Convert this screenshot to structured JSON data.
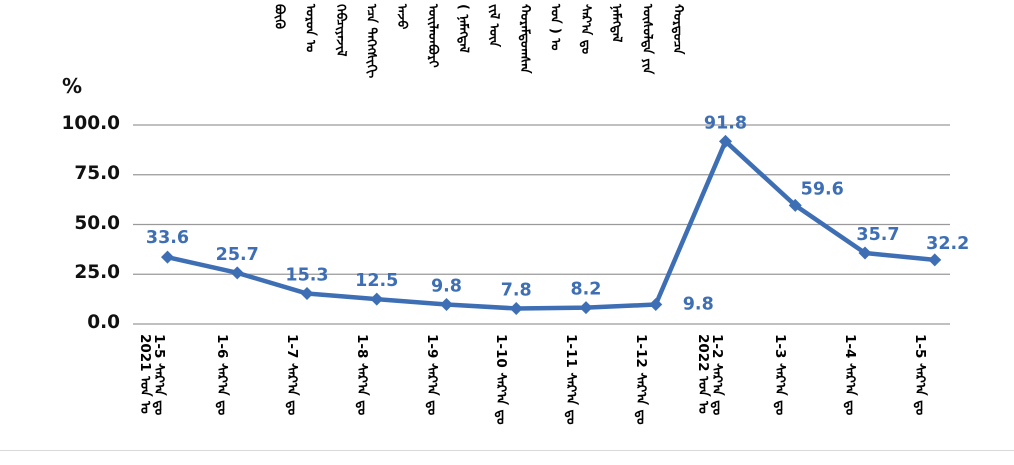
{
  "title": {
    "script": "mongolian-vertical",
    "words": [
      "ᠪᠦᠬᠦ",
      "ᠣᠷᠣᠨ ᠤ",
      "ᠬᠡᠪᠴᠢᠶᠡᠵᠢᠯ",
      "ᠡᠴᠡ ᠳᠡᠭᠡᠭᠰᠢᠬᠢ",
      "ᠠᠵᠤ",
      "ᠦᠢᠯᠡᠳᠪᠦᠷᠢ",
      "( ᠨᠡᠮᠡᠭᠳᠡᠯ",
      "ᠵᠢᠯ ᠦᠨ",
      "ᠬᠤᠷᠠᠮᠳᠤᠭᠰᠠᠨ",
      "ᠣᠨ ) ᠤ",
      "ᠰᠠᠷ᠎ᠠ ᠳᠤ",
      "ᠨᠡᠮᠡᠭᠳᠡᠯ",
      "ᠥᠰᠦᠯᠲᠡ ᠶᠢᠨ",
      "ᠬᠤᠷᠳᠤᠴᠠ"
    ]
  },
  "y_axis": {
    "unit_label": "%",
    "ticks": [
      {
        "value": 100,
        "label": "100.0"
      },
      {
        "value": 75,
        "label": "75.0"
      },
      {
        "value": 50,
        "label": "50.0"
      },
      {
        "value": 25,
        "label": "25.0"
      },
      {
        "value": 0,
        "label": "0.0"
      }
    ]
  },
  "chart_data": {
    "type": "line",
    "title": "Cumulative growth rate (%), traditional Mongolian script chart",
    "xlabel": "",
    "ylabel": "%",
    "ylim": [
      0,
      100
    ],
    "grid": true,
    "legend": false,
    "marker": "diamond",
    "line_color": "#3E6FB4",
    "label_color": "#3E6FB4",
    "grid_color": "#9a9a9a",
    "categories": [
      {
        "month": "1-5",
        "suffix": "ᠰᠠᠷ᠎ᠠ ᠳᠤ",
        "year": "2021 ᠣᠨ ᠤ"
      },
      {
        "month": "1-6",
        "suffix": "ᠰᠠᠷ᠎ᠠ ᠳᠤ",
        "year": null
      },
      {
        "month": "1-7",
        "suffix": "ᠰᠠᠷ᠎ᠠ ᠳᠤ",
        "year": null
      },
      {
        "month": "1-8",
        "suffix": "ᠰᠠᠷ᠎ᠠ ᠳᠤ",
        "year": null
      },
      {
        "month": "1-9",
        "suffix": "ᠰᠠᠷ᠎ᠠ ᠳᠤ",
        "year": null
      },
      {
        "month": "1-10",
        "suffix": "ᠰᠠᠷ᠎ᠠ ᠳᠤ",
        "year": null
      },
      {
        "month": "1-11",
        "suffix": "ᠰᠠᠷ᠎ᠠ ᠳᠤ",
        "year": null
      },
      {
        "month": "1-12",
        "suffix": "ᠰᠠᠷ᠎ᠠ ᠳᠤ",
        "year": null
      },
      {
        "month": "1-2",
        "suffix": "ᠰᠠᠷ᠎ᠠ ᠳᠤ",
        "year": "2022 ᠣᠨ ᠤ"
      },
      {
        "month": "1-3",
        "suffix": "ᠰᠠᠷ᠎ᠠ ᠳᠤ",
        "year": null
      },
      {
        "month": "1-4",
        "suffix": "ᠰᠠᠷ᠎ᠠ ᠳᠤ",
        "year": null
      },
      {
        "month": "1-5",
        "suffix": "ᠰᠠᠷ᠎ᠠ ᠳᠤ",
        "year": null
      }
    ],
    "values": [
      33.6,
      25.7,
      15.3,
      12.5,
      9.8,
      7.8,
      8.2,
      9.8,
      91.8,
      59.6,
      35.7,
      32.2
    ]
  }
}
